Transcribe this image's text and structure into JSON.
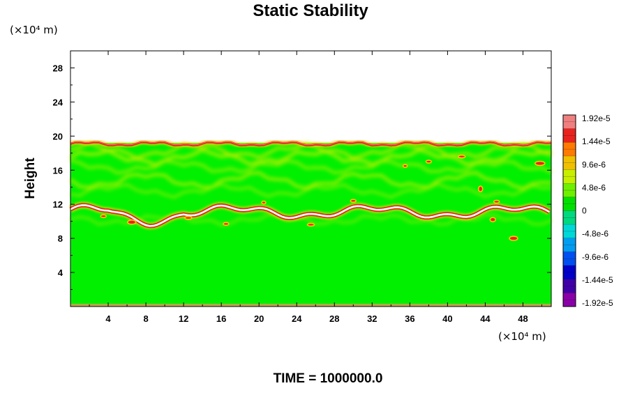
{
  "chart_data": {
    "type": "heatmap",
    "title": "Static Stability",
    "xlabel": "",
    "ylabel": "Height",
    "x_unit": "(×10⁴ m)",
    "y_unit": "(×10⁴ m)",
    "xlim": [
      0,
      51
    ],
    "ylim": [
      0,
      30
    ],
    "x_ticks": [
      4,
      8,
      12,
      16,
      20,
      24,
      28,
      32,
      36,
      40,
      44,
      48
    ],
    "y_ticks": [
      4,
      8,
      12,
      16,
      20,
      24,
      28
    ],
    "colorbar": {
      "min": -1.92e-05,
      "max": 1.92e-05,
      "labels": [
        "1.92e-5",
        "1.44e-5",
        "9.6e-6",
        "4.8e-6",
        "0",
        "-4.8e-6",
        "-9.6e-6",
        "-1.44e-5",
        "-1.92e-5"
      ],
      "colors": [
        "#f08080",
        "#e8231e",
        "#ff7a00",
        "#f0c000",
        "#c8ee00",
        "#6ef000",
        "#00e000",
        "#00d880",
        "#00d8d8",
        "#009cf0",
        "#0050f0",
        "#0000c8",
        "#4000a8",
        "#8a00a8"
      ]
    },
    "field_color": "#00f000",
    "features": [
      {
        "name": "upper stable layer",
        "height": 19.2,
        "x_range": [
          0,
          51
        ],
        "values": "≥1.44e-5"
      },
      {
        "name": "lower stable layer",
        "height": 11.2,
        "x_range": [
          0,
          51
        ],
        "values": "≥1.92e-5"
      }
    ],
    "footer": "TIME = 1000000.0"
  }
}
